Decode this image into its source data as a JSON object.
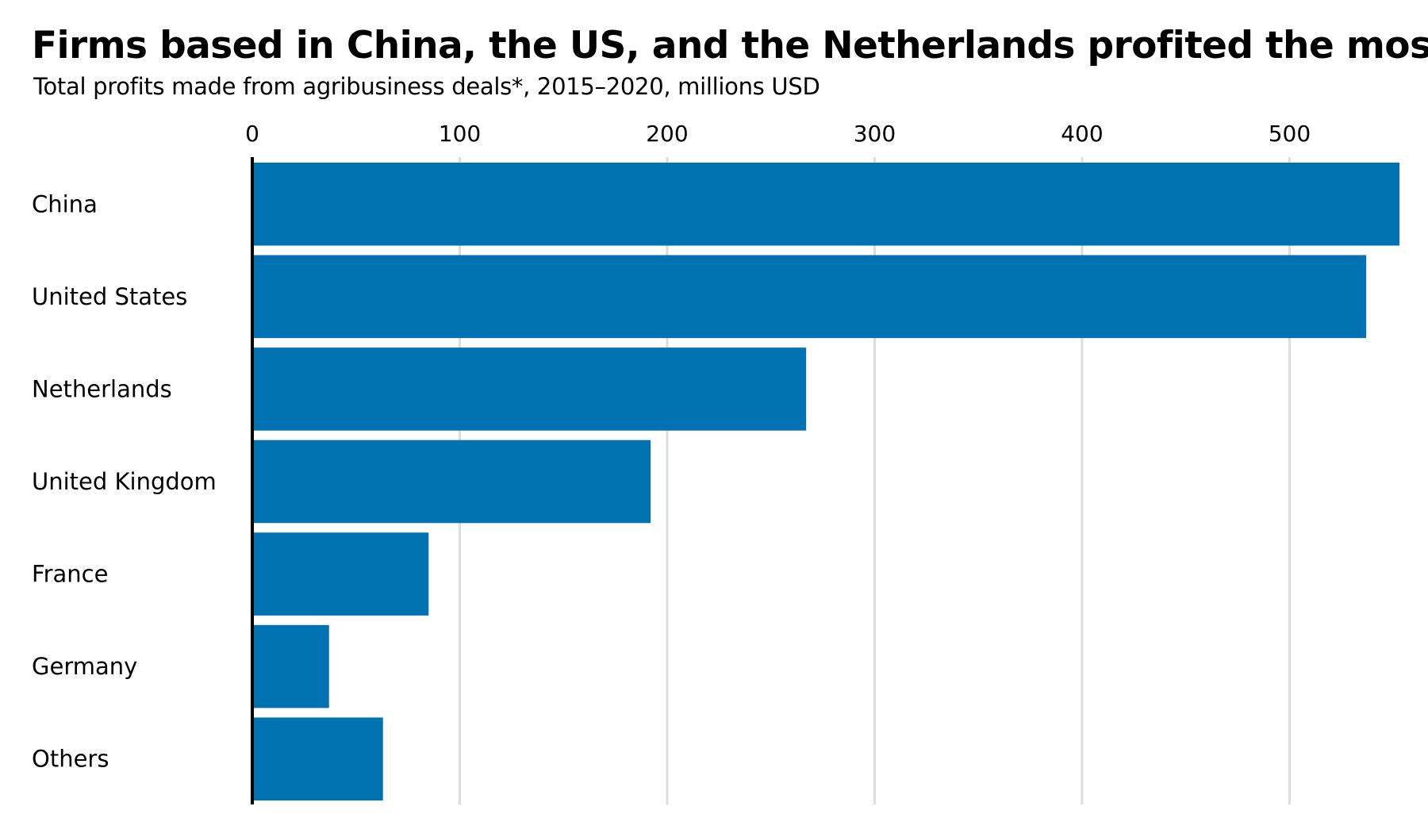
{
  "chart_data": {
    "type": "bar",
    "orientation": "horizontal",
    "title": "Firms based in China, the US, and the Netherlands profited the most",
    "subtitle": "Total profits made from agribusiness deals*, 2015–2020, millions USD",
    "xlabel": "",
    "ylabel": "",
    "categories": [
      "China",
      "United States",
      "Netherlands",
      "United Kingdom",
      "France",
      "Germany",
      "Others"
    ],
    "values": [
      553,
      537,
      267,
      192,
      85,
      37,
      63
    ],
    "xlim": [
      0,
      553
    ],
    "xticks": [
      0,
      100,
      200,
      300,
      400,
      500
    ],
    "grid": true,
    "tick_position": "top",
    "legend": "none",
    "bar_color": "#0072b2",
    "grid_color": "#dddddd",
    "axis_color": "#000000"
  }
}
